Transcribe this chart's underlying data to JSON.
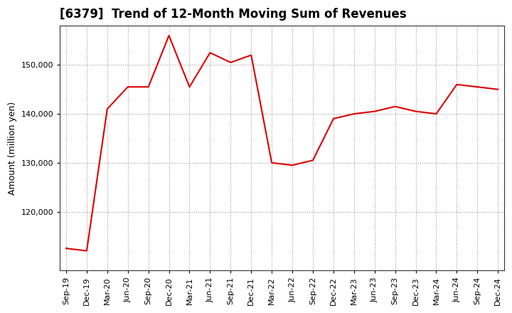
{
  "title": "[6379]  Trend of 12-Month Moving Sum of Revenues",
  "ylabel": "Amount (million yen)",
  "line_color": "#dd0000",
  "background_color": "#ffffff",
  "plot_bg_color": "#ffffff",
  "grid_color": "#999999",
  "x_labels": [
    "Sep-19",
    "Dec-19",
    "Mar-20",
    "Jun-20",
    "Sep-20",
    "Dec-20",
    "Mar-21",
    "Jun-21",
    "Sep-21",
    "Dec-21",
    "Mar-22",
    "Jun-22",
    "Sep-22",
    "Dec-22",
    "Mar-23",
    "Jun-23",
    "Sep-23",
    "Dec-23",
    "Mar-24",
    "Jun-24",
    "Sep-24",
    "Dec-24"
  ],
  "y_values": [
    112500,
    112000,
    141000,
    145500,
    145500,
    156000,
    145500,
    152500,
    150500,
    152000,
    130000,
    129500,
    130500,
    139000,
    140000,
    140500,
    141500,
    140500,
    140000,
    146000,
    145500,
    145000
  ],
  "ylim_min": 108000,
  "ylim_max": 158000,
  "yticks": [
    120000,
    130000,
    140000,
    150000
  ],
  "title_fontsize": 12,
  "label_fontsize": 9,
  "tick_fontsize": 8
}
